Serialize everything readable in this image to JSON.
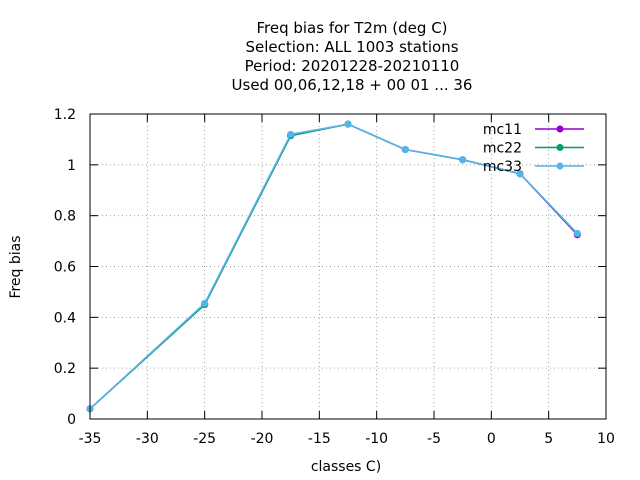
{
  "chart_data": {
    "type": "line",
    "title_lines": [
      "Freq bias  for T2m (deg C)",
      "Selection: ALL   1003 stations",
      "Period: 20201228-20210110",
      "Used  00,06,12,18 + 00 01 ... 36"
    ],
    "xlabel": "classes C)",
    "ylabel": "Freq bias",
    "xlim": [
      -35,
      10
    ],
    "ylim": [
      0,
      1.2
    ],
    "xticks": [
      -35,
      -30,
      -25,
      -20,
      -15,
      -10,
      -5,
      0,
      5,
      10
    ],
    "yticks": [
      0,
      0.2,
      0.4,
      0.6,
      0.8,
      1,
      1.2
    ],
    "grid": true,
    "legend_position": "top-right",
    "series": [
      {
        "name": "mc11",
        "color": "#9400d3",
        "x": [
          -35,
          -25,
          -17.5,
          -12.5,
          -7.5,
          -2.5,
          2.5,
          7.5
        ],
        "y": [
          0.04,
          0.45,
          1.115,
          1.16,
          1.06,
          1.02,
          0.965,
          0.725
        ]
      },
      {
        "name": "mc22",
        "color": "#009e73",
        "x": [
          -35,
          -25,
          -17.5,
          -12.5,
          -7.5,
          -2.5,
          2.5,
          7.5
        ],
        "y": [
          0.04,
          0.45,
          1.115,
          1.16,
          1.06,
          1.02,
          0.965,
          0.73
        ]
      },
      {
        "name": "mc33",
        "color": "#56b4e9",
        "x": [
          -35,
          -25,
          -17.5,
          -12.5,
          -7.5,
          -2.5,
          2.5,
          7.5
        ],
        "y": [
          0.04,
          0.455,
          1.12,
          1.16,
          1.06,
          1.02,
          0.965,
          0.73
        ]
      }
    ]
  }
}
